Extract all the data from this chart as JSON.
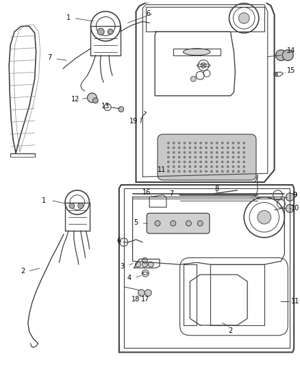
{
  "bg_color": "#ffffff",
  "line_color": "#404040",
  "label_color": "#000000",
  "fig_width": 4.38,
  "fig_height": 5.33,
  "dpi": 100,
  "label_fontsize": 7.0
}
